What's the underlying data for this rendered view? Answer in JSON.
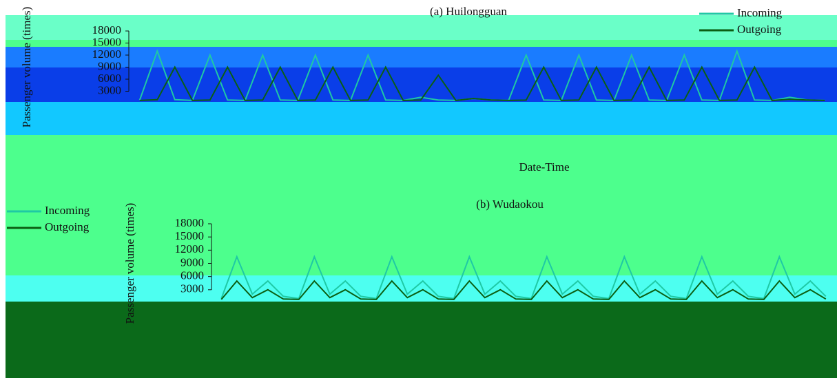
{
  "chart_data": [
    {
      "type": "line",
      "title": "(a) Huilongguan",
      "ylabel": "Passenger volume (times)",
      "xlabel": "Date-Time",
      "categories": [
        null,
        null,
        null,
        null,
        null,
        null,
        null,
        null,
        null,
        null,
        null,
        null,
        null,
        null,
        null,
        null,
        null,
        null,
        null,
        null,
        null,
        null,
        null,
        null,
        null,
        null,
        null,
        null,
        null,
        null,
        null,
        null,
        null,
        null,
        null,
        null,
        null,
        null,
        null,
        null
      ],
      "series": [
        {
          "name": "Incoming",
          "color": "#1fc9a4",
          "values": [
            800,
            13000,
            900,
            700,
            12000,
            800,
            700,
            12000,
            800,
            700,
            12000,
            800,
            700,
            12000,
            800,
            700,
            1500,
            800,
            700,
            1200,
            800,
            700,
            12000,
            800,
            700,
            12000,
            800,
            700,
            12000,
            800,
            700,
            12000,
            800,
            700,
            13000,
            800,
            700,
            1500,
            800,
            700
          ]
        },
        {
          "name": "Outgoing",
          "color": "#0b5e12",
          "values": [
            700,
            900,
            9000,
            700,
            800,
            9000,
            700,
            800,
            9000,
            700,
            800,
            9000,
            700,
            800,
            9000,
            700,
            800,
            7000,
            700,
            1200,
            800,
            700,
            800,
            9000,
            700,
            800,
            9000,
            700,
            800,
            9000,
            700,
            800,
            9000,
            700,
            800,
            9000,
            700,
            1000,
            800,
            700
          ]
        }
      ],
      "ylim": [
        0,
        18000
      ],
      "yticks": [
        3000,
        6000,
        9000,
        12000,
        15000,
        18000
      ],
      "legend": "upper-right"
    },
    {
      "type": "line",
      "title": "(b) Wudaokou",
      "ylabel": "Passenger volume (times)",
      "categories": [
        null,
        null,
        null,
        null,
        null,
        null,
        null,
        null,
        null,
        null,
        null,
        null,
        null,
        null,
        null,
        null,
        null,
        null,
        null,
        null,
        null,
        null,
        null,
        null,
        null,
        null,
        null,
        null,
        null,
        null,
        null,
        null,
        null,
        null,
        null,
        null,
        null,
        null,
        null,
        null
      ],
      "series": [
        {
          "name": "Incoming",
          "color": "#1fc9a4",
          "values": [
            1000,
            10500,
            2000,
            5000,
            1500,
            1000,
            10500,
            2000,
            5000,
            1500,
            1000,
            10500,
            2000,
            5000,
            1500,
            1000,
            10500,
            2000,
            5000,
            1500,
            1000,
            10500,
            2000,
            5000,
            1500,
            1000,
            10500,
            2000,
            5000,
            1500,
            1000,
            10500,
            2000,
            5000,
            1500,
            1000,
            10500,
            2000,
            5000,
            1500
          ]
        },
        {
          "name": "Outgoing",
          "color": "#0b5e12",
          "values": [
            800,
            5000,
            1200,
            3000,
            900,
            800,
            5000,
            1200,
            3000,
            900,
            800,
            5000,
            1200,
            3000,
            900,
            800,
            5000,
            1200,
            3000,
            900,
            800,
            5000,
            1200,
            3000,
            900,
            800,
            5000,
            1200,
            3000,
            900,
            800,
            5000,
            1200,
            3000,
            900,
            800,
            5000,
            1200,
            3000,
            900
          ]
        }
      ],
      "ylim": [
        0,
        18000
      ],
      "yticks": [
        3000,
        6000,
        9000,
        12000,
        15000,
        18000
      ],
      "legend": "upper-left"
    }
  ]
}
